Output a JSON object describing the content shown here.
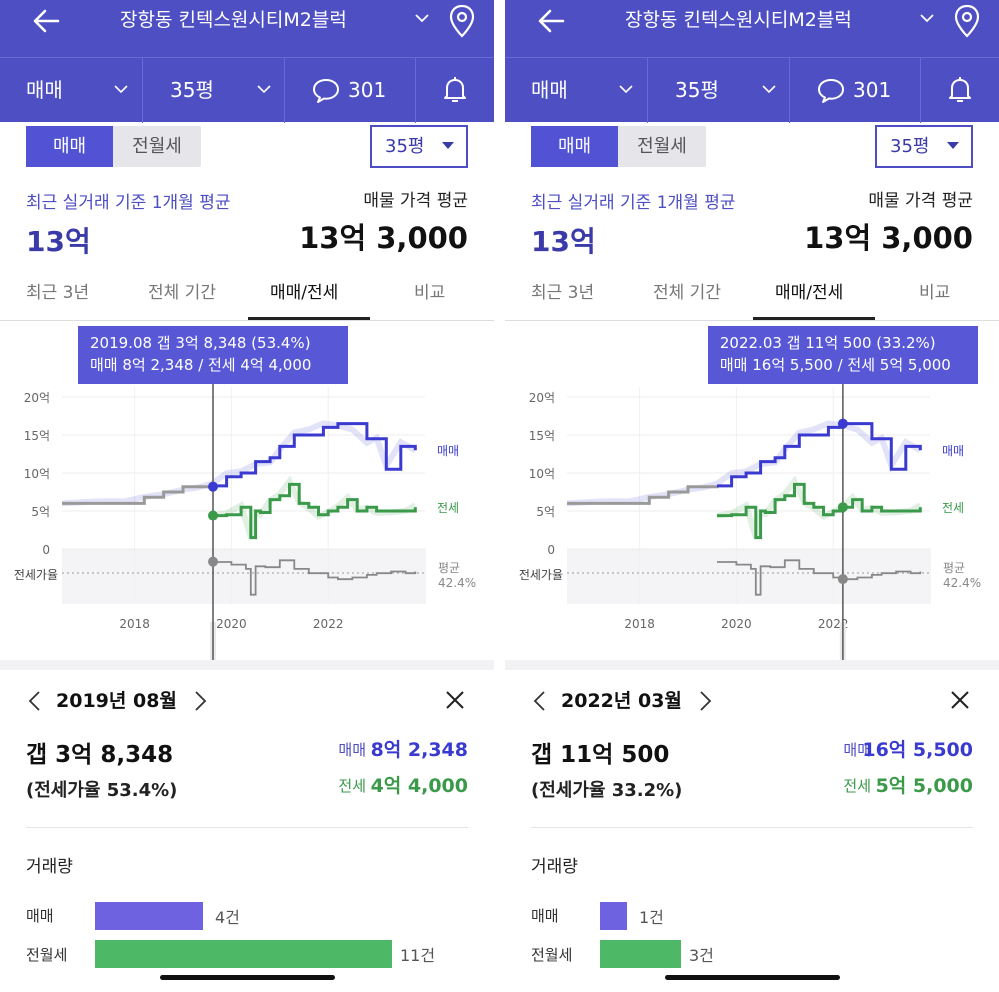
{
  "common": {
    "title": "장항동 킨텍스원시티M2블럭",
    "deal_type": "매매",
    "area": "35평",
    "comment_count": "301",
    "toggle_trade": "매매",
    "toggle_rent": "전월세",
    "area_dropdown": "35평",
    "avg_label": "최근 실거래 기준 1개월 평균",
    "avg_value": "13억",
    "listing_label": "매물 가격 평균",
    "listing_value": "13억 3,000",
    "tabs": [
      "최근 3년",
      "전체 기간",
      "매매/전세",
      "비교"
    ],
    "active_tab": 2,
    "trade_series_label": "매매",
    "jeonse_series_label": "전세",
    "ratio_label": "전세가율",
    "avg_ratio_label": "평균",
    "avg_ratio_value": "42.4%",
    "volume_title": "거래량",
    "vol_trade_label": "매매",
    "vol_rent_label": "전월세",
    "kv_trade_label": "매매",
    "kv_jeonse_label": "전세",
    "colors": {
      "primary": "#4f4fc4",
      "trade": "#3a3ad0",
      "jeonse": "#3a9a4a",
      "ratio": "#888888",
      "rent_bar": "#4db865",
      "trade_bar": "#6e62e0"
    }
  },
  "chart_data": {
    "type": "line",
    "x_ticks": [
      "2018",
      "2020",
      "2022"
    ],
    "y_ticks": [
      "20억",
      "15억",
      "10억",
      "5억",
      "0"
    ],
    "ylim": [
      0,
      20
    ],
    "x_range": [
      2016.5,
      2024.0
    ],
    "series": [
      {
        "name": "매매",
        "color": "#3a3ad0",
        "x": [
          2016.5,
          2017.2,
          2017.8,
          2018.2,
          2018.6,
          2019.0,
          2019.3,
          2019.6,
          2019.9,
          2020.2,
          2020.5,
          2020.8,
          2021.0,
          2021.3,
          2021.6,
          2021.9,
          2022.2,
          2022.5,
          2022.8,
          2023.0,
          2023.2,
          2023.5,
          2023.8
        ],
        "y": [
          6.0,
          6.0,
          6.0,
          6.8,
          7.5,
          8.2,
          8.2,
          8.3,
          9.5,
          10.0,
          11.5,
          12.0,
          13.5,
          15.0,
          15.0,
          16.0,
          16.5,
          16.5,
          14.5,
          14.5,
          10.5,
          13.5,
          13.0
        ]
      },
      {
        "name": "전세",
        "color": "#3a9a4a",
        "x": [
          2019.6,
          2019.9,
          2020.2,
          2020.4,
          2020.5,
          2020.6,
          2020.8,
          2021.0,
          2021.2,
          2021.4,
          2021.6,
          2021.8,
          2022.0,
          2022.2,
          2022.4,
          2022.6,
          2022.8,
          2023.0,
          2023.3,
          2023.6,
          2023.8
        ],
        "y": [
          4.4,
          4.5,
          5.5,
          1.5,
          5.0,
          4.8,
          6.5,
          7.0,
          8.5,
          6.0,
          5.5,
          4.5,
          5.0,
          5.5,
          6.5,
          5.0,
          5.5,
          5.0,
          5.0,
          5.0,
          5.5
        ]
      },
      {
        "name": "전세가율",
        "color": "#888888",
        "x": [
          2019.6,
          2020.0,
          2020.3,
          2020.4,
          2020.5,
          2020.7,
          2021.0,
          2021.3,
          2021.6,
          2022.0,
          2022.2,
          2022.5,
          2022.8,
          2023.0,
          2023.3,
          2023.6,
          2023.8
        ],
        "y": [
          53,
          50,
          45,
          15,
          48,
          47,
          55,
          45,
          40,
          35,
          33,
          35,
          38,
          40,
          42,
          40,
          42
        ]
      }
    ]
  },
  "screens": [
    {
      "tooltip_line1": "2019.08  갭 3억 8,348 (53.4%)",
      "tooltip_line2": "매매 8억 2,348 / 전세 4억 4,000",
      "cursor_x": 2019.62,
      "cursor_trade": 8.2,
      "cursor_jeonse": 4.4,
      "cursor_ratio": 53.4,
      "month": "2019년 08월",
      "gap": "갭 3억 8,348",
      "gap_ratio": "(전세가율 53.4%)",
      "trade_value": "8억 2,348",
      "jeonse_value": "4억 4,000",
      "vol_trade": 4,
      "vol_rent": 11,
      "vol_trade_text": "4건",
      "vol_rent_text": "11건"
    },
    {
      "tooltip_line1": "2022.03  갭 11억 500 (33.2%)",
      "tooltip_line2": "매매 16억 5,500 / 전세 5억 5,000",
      "cursor_x": 2022.2,
      "cursor_trade": 16.5,
      "cursor_jeonse": 5.5,
      "cursor_ratio": 33.2,
      "month": "2022년 03월",
      "gap": "갭 11억 500",
      "gap_ratio": "(전세가율 33.2%)",
      "trade_value": "16억 5,500",
      "jeonse_value": "5억 5,000",
      "vol_trade": 1,
      "vol_rent": 3,
      "vol_trade_text": "1건",
      "vol_rent_text": "3건"
    }
  ]
}
